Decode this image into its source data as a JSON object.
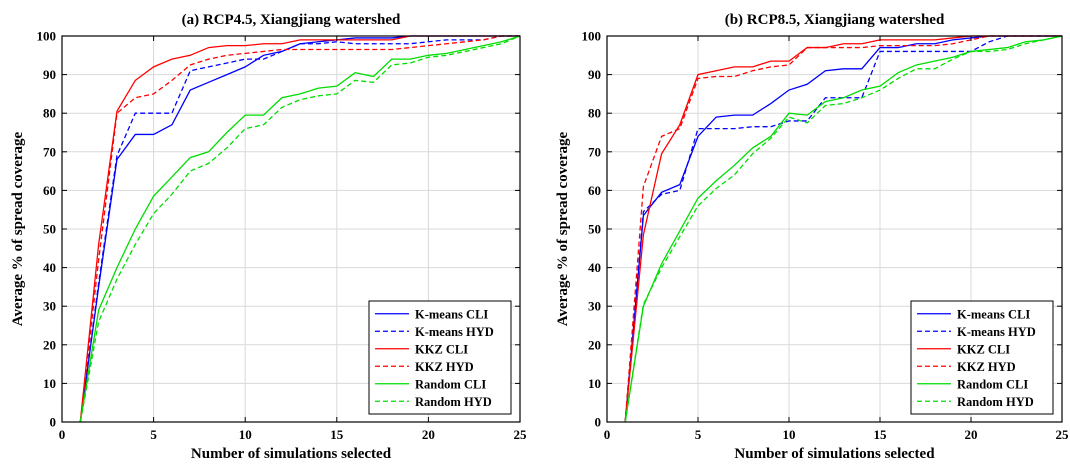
{
  "chart_data": [
    {
      "type": "line",
      "title": "(a) RCP4.5, Xiangjiang watershed",
      "xlabel": "Number of simulations selected",
      "ylabel": "Average % of spread coverage",
      "xlim": [
        0,
        25
      ],
      "ylim": [
        0,
        100
      ],
      "xticks": [
        "0",
        "5",
        "10",
        "15",
        "20",
        "25"
      ],
      "yticks": [
        "0",
        "10",
        "20",
        "30",
        "40",
        "50",
        "60",
        "70",
        "80",
        "90",
        "100"
      ],
      "grid": true,
      "legend_position": "bottom-right",
      "x": [
        1,
        2,
        3,
        4,
        5,
        6,
        7,
        8,
        9,
        10,
        11,
        12,
        13,
        14,
        15,
        16,
        17,
        18,
        19,
        20,
        21,
        22,
        23,
        24,
        25
      ],
      "series": [
        {
          "name": "K-means CLI",
          "color": "#0000ff",
          "dash": "solid",
          "values": [
            0,
            35,
            68,
            74.5,
            74.5,
            77,
            86,
            88,
            90,
            92,
            95,
            96,
            98,
            98.5,
            99,
            99.5,
            99.5,
            99.5,
            100,
            100,
            100,
            100,
            100,
            100,
            100
          ]
        },
        {
          "name": "K-means HYD",
          "color": "#0000ff",
          "dash": "dashed",
          "values": [
            0,
            36,
            69,
            80,
            80,
            80,
            91,
            92,
            93,
            94,
            94,
            96,
            98,
            98,
            98.5,
            98,
            98,
            98,
            98,
            98.5,
            99,
            99,
            99,
            100,
            100
          ]
        },
        {
          "name": "KKZ CLI",
          "color": "#ff0000",
          "dash": "solid",
          "values": [
            0,
            46,
            80.5,
            88.5,
            92,
            94,
            95,
            97,
            97.5,
            97.5,
            98,
            98,
            99,
            99,
            99,
            99,
            99,
            99,
            100,
            100,
            100,
            100,
            100,
            100,
            100
          ]
        },
        {
          "name": "KKZ HYD",
          "color": "#ff0000",
          "dash": "dashed",
          "values": [
            0,
            42,
            80,
            84,
            85,
            88.5,
            92.5,
            94,
            95,
            95.5,
            96,
            96.5,
            96.5,
            96.5,
            96.5,
            96.5,
            96.5,
            96.5,
            97,
            97.5,
            98,
            98.5,
            99,
            100,
            100
          ]
        },
        {
          "name": "Random CLI",
          "color": "#00dd00",
          "dash": "solid",
          "values": [
            0,
            29,
            40,
            50,
            58.5,
            63.5,
            68.5,
            70,
            75,
            79.5,
            79.5,
            84,
            85,
            86.5,
            87,
            90.5,
            89.5,
            94,
            94,
            95,
            95.5,
            96.5,
            97.5,
            98.5,
            100
          ]
        },
        {
          "name": "Random HYD",
          "color": "#00dd00",
          "dash": "dashed",
          "values": [
            0,
            26,
            37,
            46,
            54,
            59,
            65,
            67,
            71,
            76,
            77,
            81.5,
            83.5,
            84.5,
            85,
            88.5,
            88,
            92.5,
            93,
            94.5,
            95,
            96,
            97,
            98,
            100
          ]
        }
      ]
    },
    {
      "type": "line",
      "title": "(b) RCP8.5, Xiangjiang watershed",
      "xlabel": "Number of simulations selected",
      "ylabel": "Average % of spread coverage",
      "xlim": [
        0,
        25
      ],
      "ylim": [
        0,
        100
      ],
      "xticks": [
        "0",
        "5",
        "10",
        "15",
        "20",
        "25"
      ],
      "yticks": [
        "0",
        "10",
        "20",
        "30",
        "40",
        "50",
        "60",
        "70",
        "80",
        "90",
        "100"
      ],
      "grid": true,
      "legend_position": "bottom-right",
      "x": [
        1,
        2,
        3,
        4,
        5,
        6,
        7,
        8,
        9,
        10,
        11,
        12,
        13,
        14,
        15,
        16,
        17,
        18,
        19,
        20,
        21,
        22,
        23,
        24,
        25
      ],
      "series": [
        {
          "name": "K-means CLI",
          "color": "#0000ff",
          "dash": "solid",
          "values": [
            0,
            53.5,
            59.5,
            61.5,
            74,
            79,
            79.5,
            79.5,
            82.5,
            86,
            87.5,
            91,
            91.5,
            91.5,
            97,
            97,
            98,
            98,
            99,
            99.5,
            100,
            100,
            100,
            100,
            100
          ]
        },
        {
          "name": "K-means HYD",
          "color": "#0000ff",
          "dash": "dashed",
          "values": [
            0,
            54.5,
            59,
            60,
            76,
            76,
            76,
            76.5,
            76.5,
            78,
            78,
            84,
            84,
            84,
            96,
            96,
            96,
            96,
            96,
            96,
            98.5,
            100,
            100,
            100,
            100
          ]
        },
        {
          "name": "KKZ CLI",
          "color": "#ff0000",
          "dash": "solid",
          "values": [
            0,
            48.5,
            69.5,
            77,
            90,
            91,
            92,
            92,
            93.5,
            93.5,
            97,
            97,
            98,
            98,
            99,
            99,
            99,
            99,
            99.5,
            100,
            100,
            100,
            100,
            100,
            100
          ]
        },
        {
          "name": "KKZ HYD",
          "color": "#ff0000",
          "dash": "dashed",
          "values": [
            0,
            61,
            74,
            76,
            89,
            89.5,
            89.5,
            91,
            92,
            92.5,
            97,
            97,
            97,
            97,
            97.5,
            97.5,
            97.5,
            97.5,
            98,
            99,
            100,
            100,
            100,
            100,
            100
          ]
        },
        {
          "name": "Random CLI",
          "color": "#00dd00",
          "dash": "solid",
          "values": [
            0,
            30,
            41,
            49.5,
            58,
            62.5,
            66.5,
            71,
            74,
            80,
            79.5,
            83,
            84,
            86,
            87,
            90.5,
            92.5,
            93.5,
            94.5,
            96,
            96.5,
            97,
            98.5,
            99,
            100
          ]
        },
        {
          "name": "Random HYD",
          "color": "#00dd00",
          "dash": "dashed",
          "values": [
            0,
            30.5,
            40,
            48,
            56,
            60.5,
            64,
            69.5,
            73.5,
            79,
            77.5,
            82,
            82.5,
            84,
            86,
            89,
            91.5,
            91.5,
            94,
            96,
            96,
            96.5,
            98,
            99,
            100
          ]
        }
      ]
    }
  ]
}
